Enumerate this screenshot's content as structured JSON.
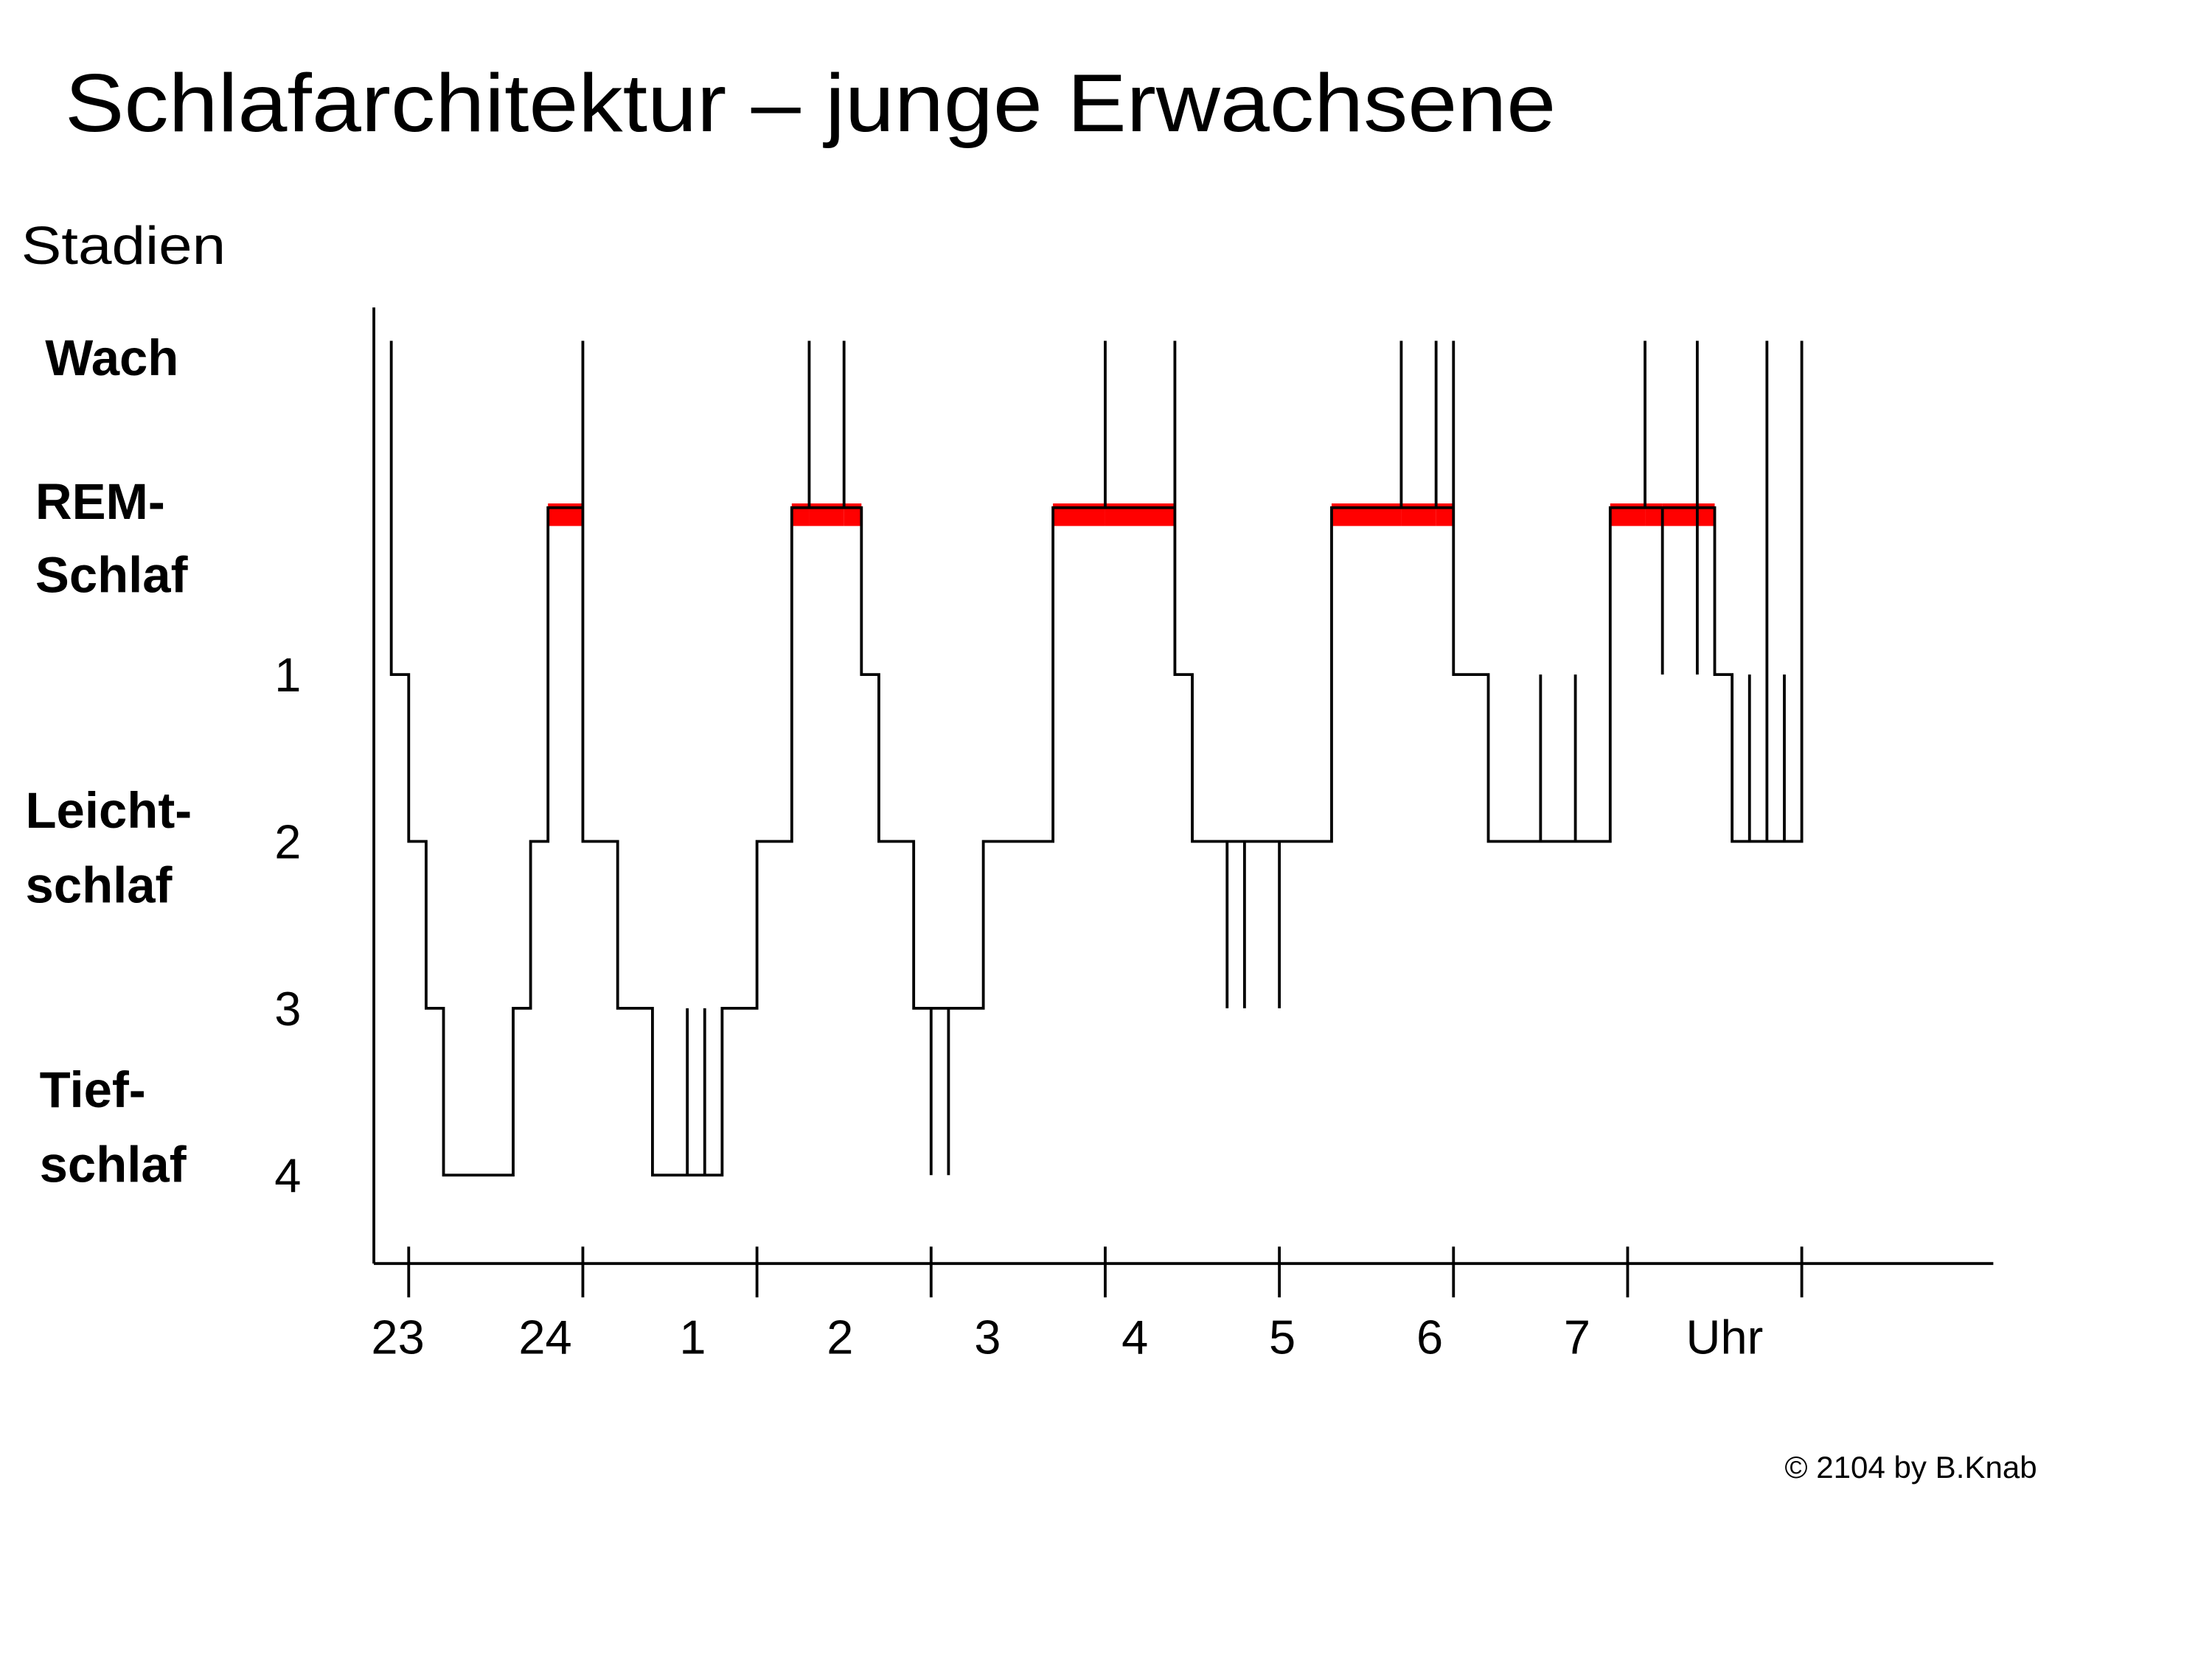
{
  "chart_data": {
    "type": "step",
    "title": "Schlafarchitektur – junge Erwachsene",
    "y_title": "Stadien",
    "stage_labels": [
      {
        "lines": [
          "Wach"
        ],
        "color": "#1a8a1a"
      },
      {
        "lines": [
          "REM-",
          "Schlaf"
        ],
        "color": "#ff0000"
      },
      {
        "lines": [
          "Leicht-",
          "schlaf"
        ],
        "color": "#1f3fcc"
      },
      {
        "lines": [
          "Tief-",
          "schlaf"
        ],
        "color": "#0d1a6e"
      }
    ],
    "x": [
      22.9,
      22.9,
      23.0,
      23.1,
      23.2,
      23.6,
      23.7,
      23.8,
      24.0,
      24.0,
      24.2,
      24.4,
      24.6,
      24.6,
      24.7,
      24.7,
      24.8,
      25.0,
      25.2,
      25.3,
      25.3,
      25.5,
      25.5,
      25.6,
      25.7,
      25.9,
      26.0,
      26.0,
      26.1,
      26.1,
      26.3,
      26.7,
      27.0,
      27.0,
      27.4,
      27.4,
      27.5,
      27.7,
      27.7,
      27.8,
      27.8,
      28.0,
      28.0,
      28.3,
      28.7,
      28.7,
      28.9,
      28.9,
      29.0,
      29.0,
      29.2,
      29.5,
      29.5,
      29.7,
      29.7,
      29.9,
      30.1,
      30.1,
      30.2,
      30.2,
      30.4,
      30.4,
      30.4,
      30.5,
      30.6,
      30.7,
      30.7,
      30.8,
      30.8,
      30.9,
      30.9,
      31.0
    ],
    "y": [
      -1,
      1,
      2,
      3,
      4,
      3,
      2,
      0,
      -1,
      2,
      3,
      4,
      3,
      4,
      3,
      4,
      3,
      2,
      0,
      -1,
      0,
      -1,
      0,
      1,
      2,
      3,
      4,
      3,
      4,
      3,
      2,
      0,
      -1,
      0,
      -1,
      1,
      2,
      3,
      2,
      3,
      2,
      3,
      2,
      0,
      -1,
      0,
      -1,
      0,
      -1,
      1,
      2,
      1,
      2,
      1,
      2,
      0,
      -1,
      0,
      1,
      0,
      -1,
      1,
      0,
      1,
      2,
      1,
      2,
      -1,
      2,
      1,
      2,
      -1
    ],
    "color": "#000000",
    "highlight": {
      "value": 0,
      "color": "#ff0000"
    },
    "xlim": [
      22.8,
      32.1
    ],
    "xticks": [
      23,
      24,
      {
        "value": 25,
        "label": "1"
      },
      {
        "value": 26,
        "label": "2"
      },
      {
        "value": 27,
        "label": "3"
      },
      {
        "value": 28,
        "label": "4"
      },
      {
        "value": 29,
        "label": "5"
      },
      {
        "value": 30,
        "label": "6"
      },
      {
        "value": 31,
        "label": "7"
      }
    ],
    "x_label": "Uhr",
    "ylim": [
      4.53,
      -1.2
    ],
    "yticks": [
      1,
      2,
      3,
      4
    ],
    "credit": "© 2104 by B.Knab"
  }
}
